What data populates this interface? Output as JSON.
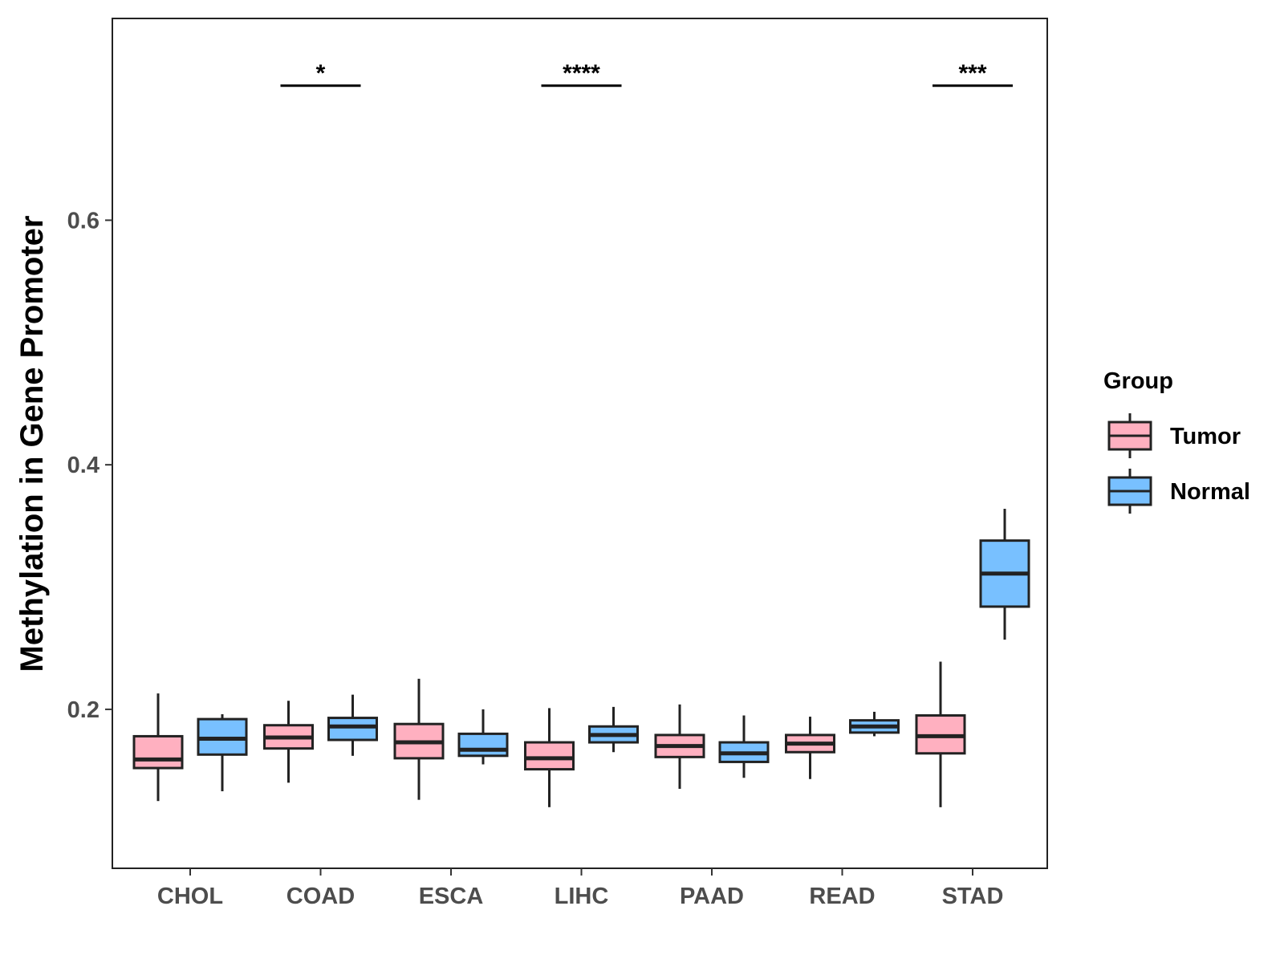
{
  "chart_data": {
    "type": "boxplot",
    "title": "",
    "xlabel": "",
    "ylabel": "Methylation in Gene Promoter",
    "ylim": [
      0.07,
      0.765
    ],
    "yticks": [
      0.2,
      0.4,
      0.6
    ],
    "ytick_labels": [
      "0.2",
      "0.4",
      "0.6"
    ],
    "categories": [
      "CHOL",
      "COAD",
      "ESCA",
      "LIHC",
      "PAAD",
      "READ",
      "STAD"
    ],
    "legend": {
      "title": "Group",
      "position": "right"
    },
    "colors": {
      "Tumor": "#ffb0c0",
      "Normal": "#78c0ff",
      "outline": "#222222"
    },
    "series": [
      {
        "name": "Tumor",
        "boxes": [
          {
            "category": "CHOL",
            "lower": 0.125,
            "q1": 0.152,
            "median": 0.159,
            "q3": 0.178,
            "upper": 0.213
          },
          {
            "category": "COAD",
            "lower": 0.14,
            "q1": 0.168,
            "median": 0.177,
            "q3": 0.187,
            "upper": 0.207
          },
          {
            "category": "ESCA",
            "lower": 0.126,
            "q1": 0.16,
            "median": 0.173,
            "q3": 0.188,
            "upper": 0.225
          },
          {
            "category": "LIHC",
            "lower": 0.12,
            "q1": 0.151,
            "median": 0.16,
            "q3": 0.173,
            "upper": 0.201
          },
          {
            "category": "PAAD",
            "lower": 0.135,
            "q1": 0.161,
            "median": 0.17,
            "q3": 0.179,
            "upper": 0.204
          },
          {
            "category": "READ",
            "lower": 0.143,
            "q1": 0.165,
            "median": 0.172,
            "q3": 0.179,
            "upper": 0.194
          },
          {
            "category": "STAD",
            "lower": 0.12,
            "q1": 0.164,
            "median": 0.178,
            "q3": 0.195,
            "upper": 0.239
          }
        ]
      },
      {
        "name": "Normal",
        "boxes": [
          {
            "category": "CHOL",
            "lower": 0.133,
            "q1": 0.163,
            "median": 0.176,
            "q3": 0.192,
            "upper": 0.196
          },
          {
            "category": "COAD",
            "lower": 0.162,
            "q1": 0.175,
            "median": 0.186,
            "q3": 0.193,
            "upper": 0.212
          },
          {
            "category": "ESCA",
            "lower": 0.155,
            "q1": 0.162,
            "median": 0.167,
            "q3": 0.18,
            "upper": 0.2
          },
          {
            "category": "LIHC",
            "lower": 0.165,
            "q1": 0.173,
            "median": 0.179,
            "q3": 0.186,
            "upper": 0.202
          },
          {
            "category": "PAAD",
            "lower": 0.144,
            "q1": 0.157,
            "median": 0.164,
            "q3": 0.173,
            "upper": 0.195
          },
          {
            "category": "READ",
            "lower": 0.178,
            "q1": 0.181,
            "median": 0.186,
            "q3": 0.191,
            "upper": 0.198
          },
          {
            "category": "STAD",
            "lower": 0.257,
            "q1": 0.284,
            "median": 0.311,
            "q3": 0.338,
            "upper": 0.364
          }
        ]
      }
    ],
    "significance": [
      {
        "category": "COAD",
        "label": "*",
        "y": 0.71
      },
      {
        "category": "LIHC",
        "label": "****",
        "y": 0.71
      },
      {
        "category": "STAD",
        "label": "***",
        "y": 0.71
      }
    ]
  }
}
